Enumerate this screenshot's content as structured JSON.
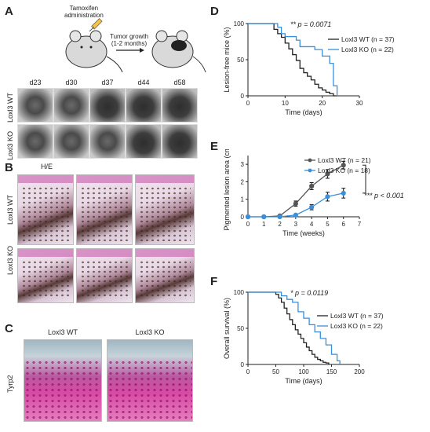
{
  "panels": {
    "A": {
      "letter": "A",
      "label_tamoxifen": "Tamoxifen\nadministration",
      "label_tumor": "Tumor growth\n(1-2 months)",
      "days": [
        "d23",
        "d30",
        "d37",
        "d44",
        "d58"
      ],
      "rows": [
        "Loxl3 WT",
        "Loxl3 KO"
      ]
    },
    "B": {
      "letter": "B",
      "stain": "H/E",
      "rows": [
        "Loxl3 WT",
        "Loxl3 KO"
      ]
    },
    "C": {
      "letter": "C",
      "columns": [
        "Loxl3 WT",
        "Loxl3 KO"
      ],
      "row": "Tyrp2"
    },
    "D": {
      "letter": "D"
    },
    "E": {
      "letter": "E"
    },
    "F": {
      "letter": "F"
    }
  },
  "chart_data": [
    {
      "id": "D",
      "type": "line",
      "step": true,
      "xlabel": "Time (days)",
      "ylabel": "Lesion-free mice (%)",
      "xlim": [
        0,
        30
      ],
      "ylim": [
        0,
        100
      ],
      "xticks": [
        0,
        10,
        20,
        30
      ],
      "yticks": [
        0,
        50,
        100
      ],
      "annotation": "** p = 0.0071",
      "series": [
        {
          "name": "Loxl3 WT (n = 37)",
          "color": "#222222",
          "x": [
            0,
            7,
            8,
            9,
            10,
            11,
            12,
            13,
            14,
            15,
            16,
            17,
            18,
            19,
            20,
            21,
            22,
            23,
            24
          ],
          "y": [
            100,
            92,
            86,
            81,
            73,
            65,
            57,
            49,
            38,
            32,
            27,
            22,
            16,
            11,
            8,
            5,
            3,
            0,
            0
          ]
        },
        {
          "name": "Loxl3 KO (n = 22)",
          "color": "#3a8fdc",
          "x": [
            0,
            8,
            9,
            10,
            13,
            14,
            16,
            18,
            20,
            22,
            23,
            24
          ],
          "y": [
            100,
            95,
            86,
            82,
            77,
            68,
            68,
            64,
            55,
            45,
            14,
            0
          ]
        }
      ]
    },
    {
      "id": "E",
      "type": "line",
      "xlabel": "Time (weeks)",
      "ylabel": "Pigmented lesion area (cm²)",
      "xlim": [
        0,
        7
      ],
      "ylim": [
        0,
        3.5
      ],
      "xticks": [
        0,
        1,
        2,
        3,
        4,
        5,
        6,
        7
      ],
      "yticks": [
        0,
        1,
        2,
        3
      ],
      "annotation": "*** p < 0.001",
      "series": [
        {
          "name": "Loxl3 WT (n = 21)",
          "color": "#555555",
          "x": [
            0,
            1,
            2,
            3,
            4,
            5,
            6
          ],
          "y": [
            0,
            0,
            0.05,
            0.75,
            1.75,
            2.45,
            2.95
          ],
          "err": [
            0,
            0,
            0.03,
            0.15,
            0.2,
            0.25,
            0.22
          ]
        },
        {
          "name": "Loxl3 KO (n = 18)",
          "color": "#3a8fdc",
          "x": [
            0,
            1,
            2,
            3,
            4,
            5,
            6
          ],
          "y": [
            0,
            0,
            0,
            0.1,
            0.55,
            1.15,
            1.35
          ],
          "err": [
            0,
            0,
            0,
            0.05,
            0.15,
            0.25,
            0.28
          ]
        }
      ]
    },
    {
      "id": "F",
      "type": "line",
      "step": true,
      "xlabel": "Time (days)",
      "ylabel": "Overall survival (%)",
      "xlim": [
        0,
        200
      ],
      "ylim": [
        0,
        100
      ],
      "xticks": [
        0,
        50,
        100,
        150,
        200
      ],
      "yticks": [
        0,
        50,
        100
      ],
      "annotation": "* p = 0.0119",
      "series": [
        {
          "name": "Loxl3 WT (n = 37)",
          "color": "#222222",
          "x": [
            0,
            50,
            55,
            60,
            65,
            70,
            75,
            80,
            85,
            90,
            95,
            100,
            105,
            110,
            115,
            120,
            125,
            130,
            135,
            140,
            145
          ],
          "y": [
            100,
            97,
            92,
            86,
            78,
            70,
            62,
            55,
            48,
            42,
            36,
            30,
            24,
            19,
            14,
            10,
            7,
            5,
            3,
            2,
            0
          ]
        },
        {
          "name": "Loxl3 KO (n = 22)",
          "color": "#3a8fdc",
          "x": [
            0,
            60,
            70,
            80,
            90,
            100,
            110,
            120,
            130,
            140,
            150,
            160,
            165
          ],
          "y": [
            100,
            95,
            90,
            86,
            73,
            64,
            55,
            45,
            36,
            27,
            14,
            5,
            0
          ]
        }
      ]
    }
  ]
}
